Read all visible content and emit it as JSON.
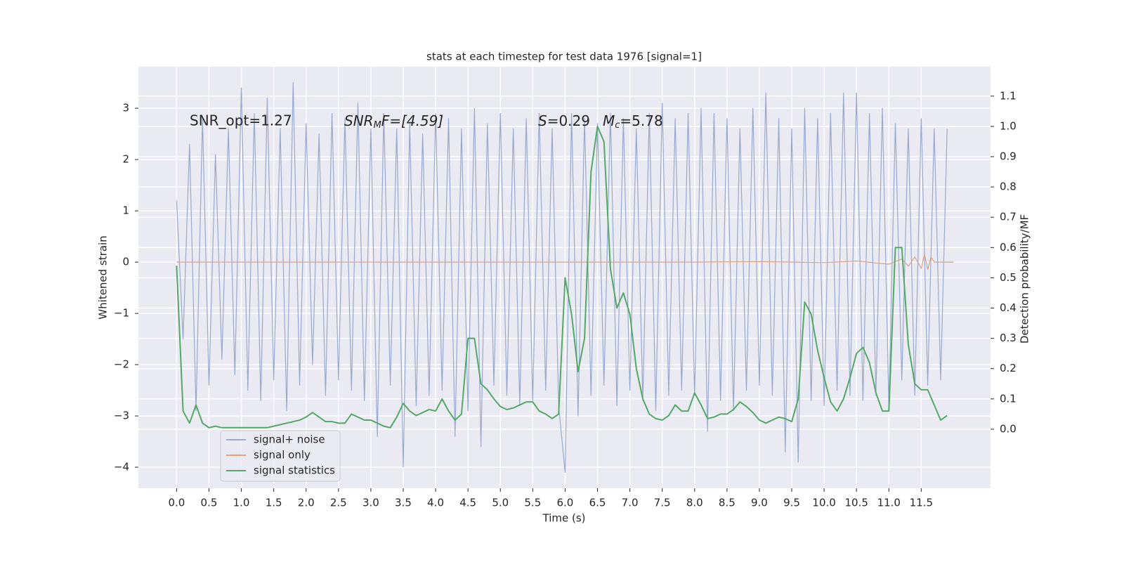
{
  "chart_data": {
    "type": "line",
    "title": "stats at each timestep for test data 1976 [signal=1]",
    "xlabel": "Time (s)",
    "ylabel": "Whitened strain",
    "y2label": "Detection probability/MF",
    "annotations": [
      [
        "SNR_opt=1.27"
      ],
      [
        "SNR",
        "M",
        "F=[4.59]"
      ],
      [
        "S",
        "=0.29"
      ],
      [
        "M",
        "c",
        "=5.78"
      ]
    ],
    "legend": "lower left",
    "grid": true,
    "xlim": [
      -0.59,
      12.57
    ],
    "ylim": [
      -4.41,
      3.81
    ],
    "y2lim": [
      -0.195,
      1.197
    ],
    "xticks": [
      {
        "value": 0,
        "label": "0.0"
      },
      0.5,
      {
        "value": 1,
        "label": "1.0"
      },
      1.5,
      {
        "value": 2,
        "label": "2.0"
      },
      2.5,
      {
        "value": 3,
        "label": "3.0"
      },
      3.5,
      {
        "value": 4,
        "label": "4.0"
      },
      4.5,
      {
        "value": 5,
        "label": "5.0"
      },
      5.5,
      {
        "value": 6,
        "label": "6.0"
      },
      6.5,
      {
        "value": 7,
        "label": "7.0"
      },
      7.5,
      {
        "value": 8,
        "label": "8.0"
      },
      8.5,
      {
        "value": 9,
        "label": "9.0"
      },
      9.5,
      {
        "value": 10,
        "label": "10.0"
      },
      10.5,
      {
        "value": 11,
        "label": "11.0"
      },
      11.5
    ],
    "yticks": [
      {
        "value": -4,
        "label": "−4"
      },
      {
        "value": -3,
        "label": "−3"
      },
      {
        "value": -2,
        "label": "−2"
      },
      {
        "value": -1,
        "label": "−1"
      },
      0,
      1,
      2,
      3
    ],
    "y2ticks": [
      {
        "value": 0,
        "label": "0.0"
      },
      0.1,
      0.2,
      0.3,
      0.4,
      0.5,
      0.6,
      0.7,
      0.8,
      0.9,
      {
        "value": 1,
        "label": "1.0"
      },
      1.1
    ],
    "x": [
      0.0,
      0.1,
      0.2,
      0.3,
      0.4,
      0.5,
      0.6,
      0.7,
      0.8,
      0.9,
      1.0,
      1.1,
      1.2,
      1.3,
      1.4,
      1.5,
      1.6,
      1.7,
      1.8,
      1.9,
      2.0,
      2.1,
      2.2,
      2.3,
      2.4,
      2.5,
      2.6,
      2.7,
      2.8,
      2.9,
      3.0,
      3.1,
      3.2,
      3.3,
      3.4,
      3.5,
      3.6,
      3.7,
      3.8,
      3.9,
      4.0,
      4.1,
      4.2,
      4.3,
      4.4,
      4.5,
      4.6,
      4.7,
      4.8,
      4.9,
      5.0,
      5.1,
      5.2,
      5.3,
      5.4,
      5.5,
      5.6,
      5.7,
      5.8,
      5.9,
      6.0,
      6.1,
      6.2,
      6.3,
      6.4,
      6.5,
      6.6,
      6.7,
      6.8,
      6.9,
      7.0,
      7.1,
      7.2,
      7.3,
      7.4,
      7.5,
      7.6,
      7.7,
      7.8,
      7.9,
      8.0,
      8.1,
      8.2,
      8.3,
      8.4,
      8.5,
      8.6,
      8.7,
      8.8,
      8.9,
      9.0,
      9.1,
      9.2,
      9.3,
      9.4,
      9.5,
      9.6,
      9.7,
      9.8,
      9.9,
      10.0,
      10.1,
      10.2,
      10.3,
      10.4,
      10.5,
      10.6,
      10.7,
      10.8,
      10.9,
      11.0,
      11.1,
      11.2,
      11.3,
      11.4,
      11.5,
      11.6,
      11.7,
      11.8,
      11.9
    ],
    "series": [
      {
        "name": "signal+ noise",
        "color": "#98aad0",
        "values": [
          1.2,
          -1.5,
          2.3,
          -2.9,
          2.8,
          -2.4,
          2.1,
          -1.9,
          2.6,
          -2.2,
          3.4,
          -2.5,
          2.9,
          -2.7,
          3.2,
          -2.3,
          2.6,
          -2.9,
          3.5,
          -2.4,
          2.7,
          -2.0,
          2.5,
          -2.6,
          2.9,
          -2.3,
          2.8,
          -2.5,
          3.1,
          -2.7,
          2.6,
          -3.4,
          2.9,
          -2.4,
          2.6,
          -4.0,
          2.7,
          -2.8,
          2.5,
          -2.6,
          2.9,
          -2.5,
          2.8,
          -3.4,
          2.6,
          -2.9,
          3.0,
          -3.6,
          2.7,
          -2.4,
          2.9,
          -2.6,
          2.6,
          -2.8,
          2.8,
          -2.7,
          2.9,
          -2.5,
          2.6,
          -2.8,
          -4.1,
          2.9,
          -3.0,
          2.8,
          -2.6,
          2.7,
          -2.4,
          2.9,
          -2.8,
          2.8,
          -2.5,
          2.6,
          -2.7,
          2.9,
          -2.9,
          3.1,
          -2.6,
          2.8,
          -2.5,
          2.9,
          -2.6,
          3.0,
          -3.3,
          2.9,
          -2.7,
          2.8,
          -2.9,
          2.6,
          -2.5,
          3.0,
          -2.4,
          3.3,
          -2.6,
          2.8,
          -3.7,
          2.6,
          -3.9,
          3.0,
          -2.7,
          2.8,
          -2.8,
          2.9,
          -2.5,
          3.3,
          -2.6,
          3.3,
          -2.7,
          2.9,
          -2.6,
          3.0,
          -2.8,
          2.7,
          -2.3,
          2.6,
          -2.6,
          2.8,
          -2.4,
          2.6,
          -2.3,
          2.6
        ]
      },
      {
        "name": "signal only",
        "color": "#dd9f86",
        "x": [
          0,
          2,
          4,
          6,
          8,
          9,
          10,
          10.5,
          11,
          11.2,
          11.3,
          11.4,
          11.5,
          11.55,
          11.6,
          11.65,
          11.7,
          12.0
        ],
        "values": [
          0,
          0,
          0,
          0,
          0,
          0.01,
          -0.01,
          0.02,
          -0.04,
          0.06,
          -0.08,
          0.1,
          -0.12,
          0.15,
          -0.14,
          0.1,
          0,
          0
        ]
      },
      {
        "name": "signal statistics",
        "color": "#55a868",
        "axis": "y2",
        "values": [
          0.54,
          0.06,
          0.02,
          0.08,
          0.02,
          0.005,
          0.01,
          0.005,
          0.005,
          0.005,
          0.005,
          0.005,
          0.005,
          0.005,
          0.005,
          0.01,
          0.015,
          0.02,
          0.025,
          0.03,
          0.04,
          0.055,
          0.04,
          0.025,
          0.025,
          0.02,
          0.02,
          0.05,
          0.04,
          0.03,
          0.03,
          0.02,
          0.01,
          0.005,
          0.04,
          0.085,
          0.06,
          0.045,
          0.055,
          0.065,
          0.06,
          0.1,
          0.06,
          0.03,
          0.05,
          0.3,
          0.3,
          0.15,
          0.13,
          0.1,
          0.075,
          0.065,
          0.07,
          0.08,
          0.09,
          0.09,
          0.06,
          0.05,
          0.035,
          0.05,
          0.5,
          0.38,
          0.19,
          0.3,
          0.85,
          1.0,
          0.95,
          0.53,
          0.4,
          0.45,
          0.38,
          0.2,
          0.1,
          0.05,
          0.035,
          0.03,
          0.045,
          0.08,
          0.06,
          0.06,
          0.12,
          0.08,
          0.035,
          0.04,
          0.05,
          0.05,
          0.065,
          0.09,
          0.075,
          0.055,
          0.03,
          0.02,
          0.03,
          0.04,
          0.035,
          0.025,
          0.1,
          0.42,
          0.38,
          0.26,
          0.17,
          0.09,
          0.06,
          0.1,
          0.17,
          0.25,
          0.27,
          0.22,
          0.12,
          0.06,
          0.06,
          0.6,
          0.6,
          0.28,
          0.15,
          0.13,
          0.13,
          0.08,
          0.03,
          0.045
        ]
      }
    ]
  }
}
